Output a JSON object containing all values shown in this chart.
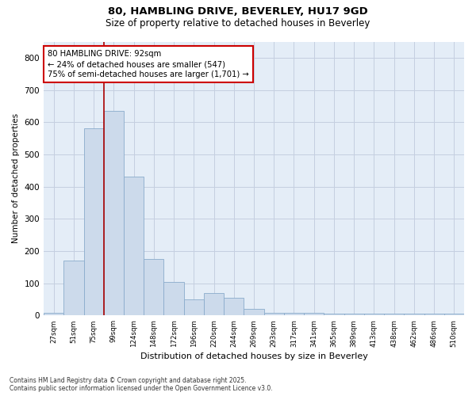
{
  "title_line1": "80, HAMBLING DRIVE, BEVERLEY, HU17 9GD",
  "title_line2": "Size of property relative to detached houses in Beverley",
  "xlabel": "Distribution of detached houses by size in Beverley",
  "ylabel": "Number of detached properties",
  "categories": [
    "27sqm",
    "51sqm",
    "75sqm",
    "99sqm",
    "124sqm",
    "148sqm",
    "172sqm",
    "196sqm",
    "220sqm",
    "244sqm",
    "269sqm",
    "293sqm",
    "317sqm",
    "341sqm",
    "365sqm",
    "389sqm",
    "413sqm",
    "438sqm",
    "462sqm",
    "486sqm",
    "510sqm"
  ],
  "values": [
    8,
    170,
    580,
    635,
    430,
    175,
    105,
    50,
    70,
    55,
    20,
    8,
    8,
    8,
    5,
    5,
    5,
    5,
    5,
    5,
    5
  ],
  "bar_color": "#ccdaeb",
  "bar_edge_color": "#8aabcc",
  "grid_color": "#c5cfe0",
  "background_color": "#e4edf7",
  "vline_color": "#aa0000",
  "annotation_text": "80 HAMBLING DRIVE: 92sqm\n← 24% of detached houses are smaller (547)\n75% of semi-detached houses are larger (1,701) →",
  "annotation_box_color": "#cc0000",
  "ylim": [
    0,
    850
  ],
  "yticks": [
    0,
    100,
    200,
    300,
    400,
    500,
    600,
    700,
    800
  ],
  "footer_line1": "Contains HM Land Registry data © Crown copyright and database right 2025.",
  "footer_line2": "Contains public sector information licensed under the Open Government Licence v3.0."
}
